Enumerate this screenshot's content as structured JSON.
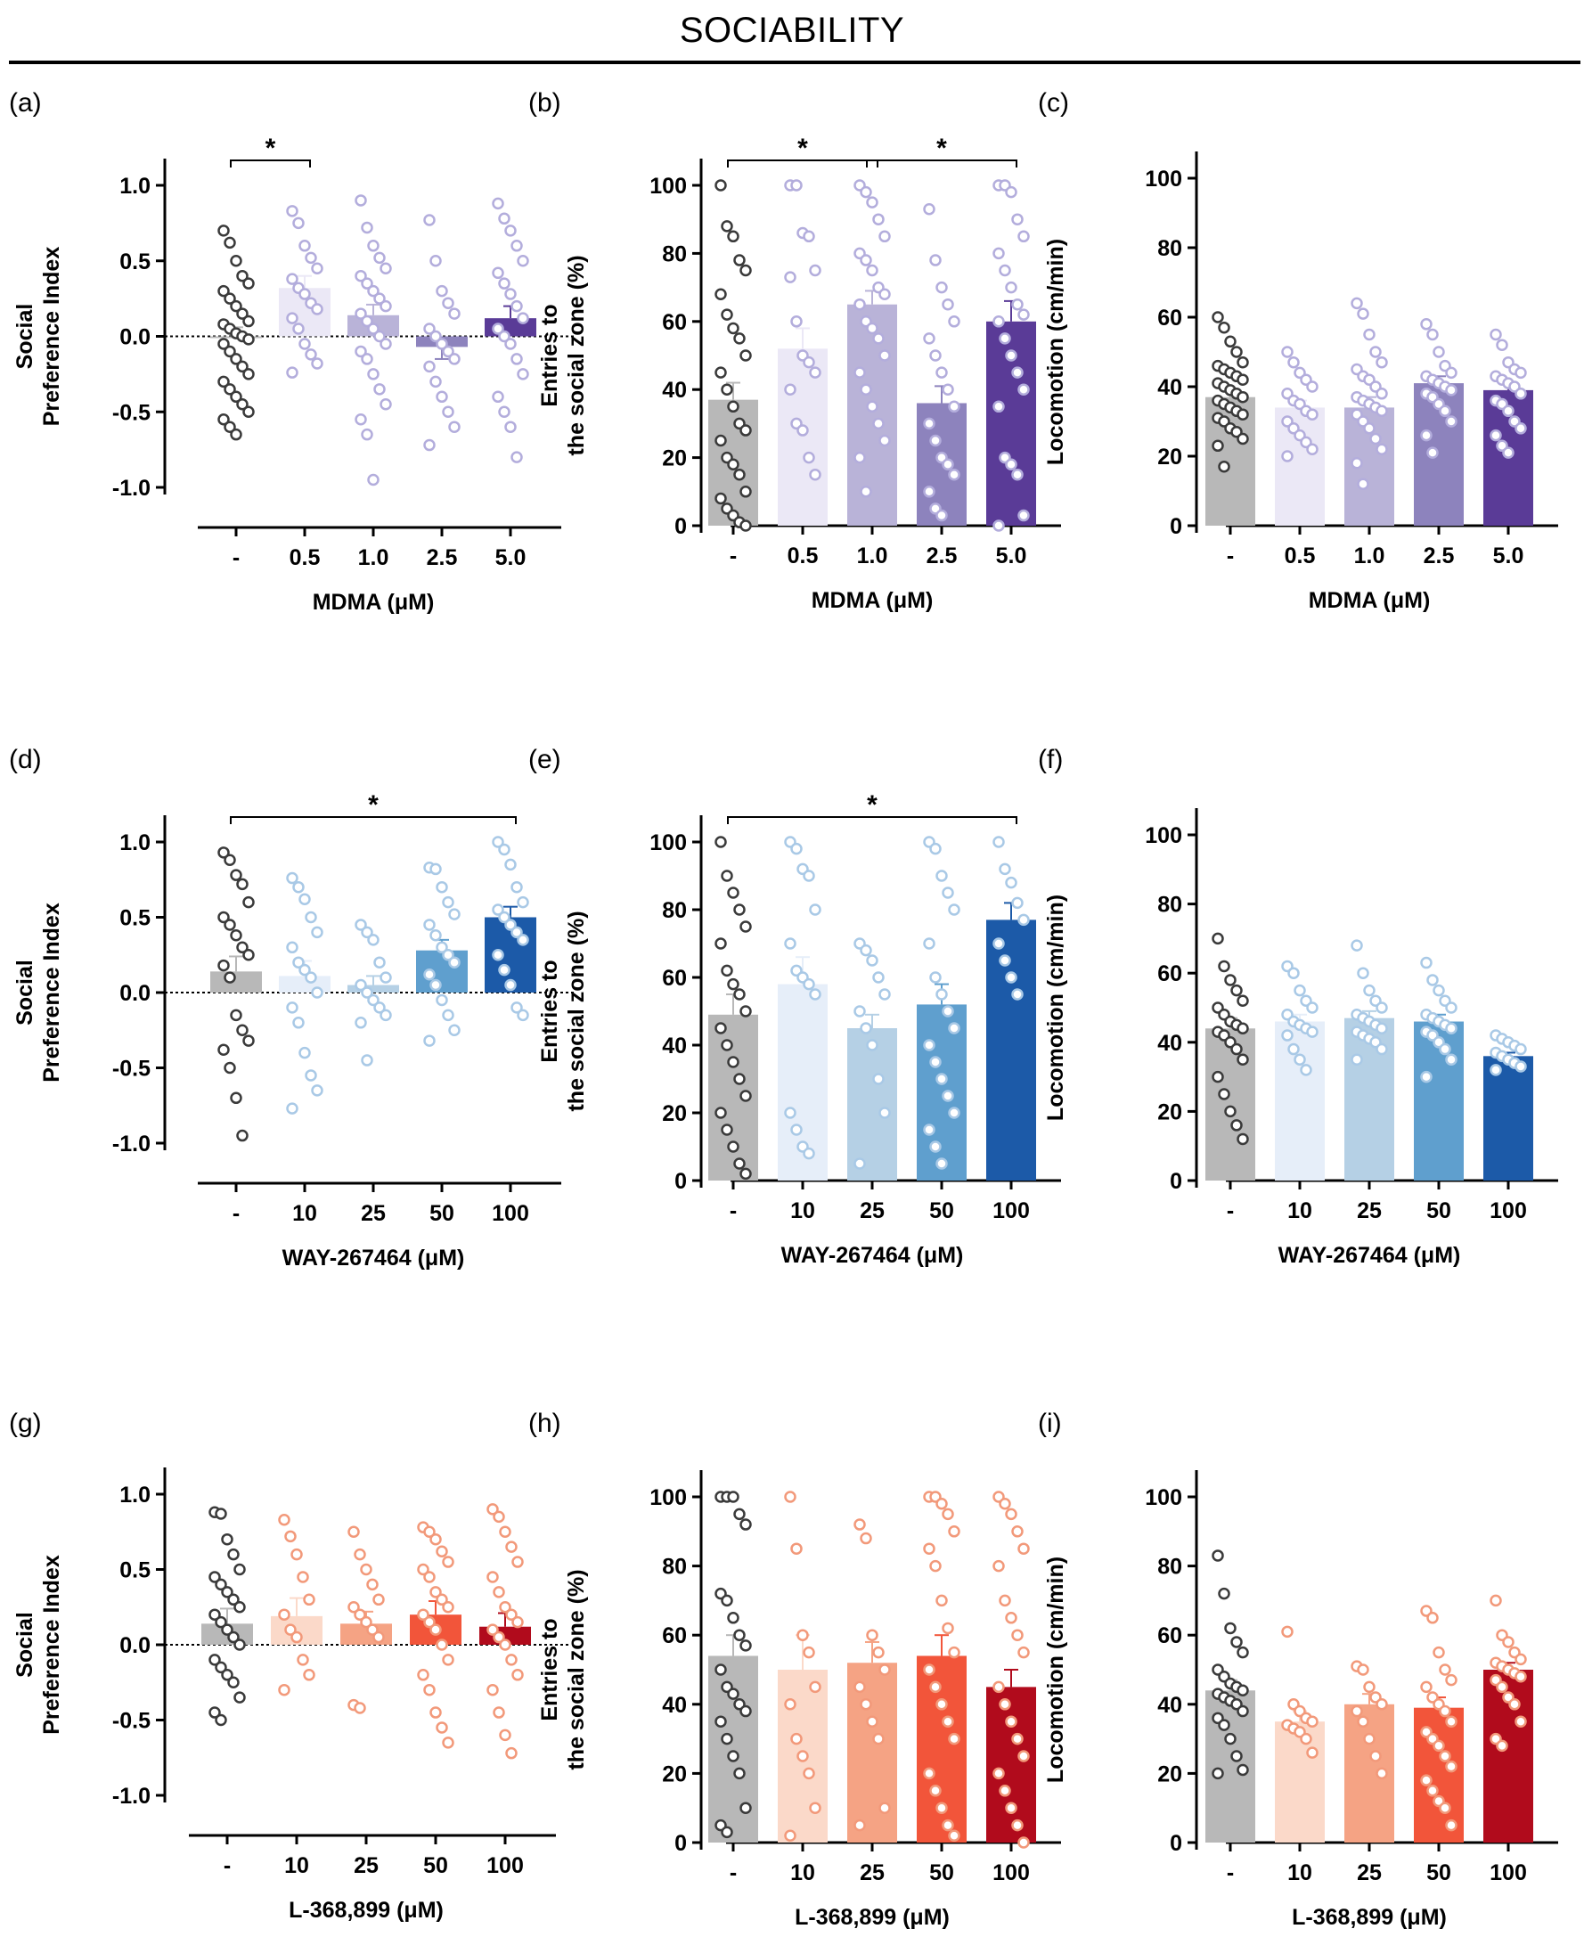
{
  "page": {
    "title": "SOCIABILITY"
  },
  "chart_data": [
    {
      "panel": "(a)",
      "type": "bar",
      "ylabel": [
        "Social",
        "Preference Index"
      ],
      "xlabel": "MDMA (μM)",
      "categories": [
        "-",
        "0.5",
        "1.0",
        "2.5",
        "5.0"
      ],
      "ylim": [
        -1.0,
        1.0
      ],
      "yticks": [
        "-1.0",
        "-0.5",
        "0.0",
        "0.5",
        "1.0"
      ],
      "zero_line": true,
      "colors": [
        "#b8b8b8",
        "#ebe8f6",
        "#b9b3d8",
        "#8d83bd",
        "#5a3b97"
      ],
      "values": [
        0.0,
        0.32,
        0.14,
        -0.07,
        0.12
      ],
      "sem": [
        0.06,
        0.08,
        0.07,
        0.08,
        0.08
      ],
      "points": [
        [
          0.7,
          0.62,
          0.5,
          0.4,
          0.35,
          0.3,
          0.25,
          0.2,
          0.15,
          0.1,
          0.08,
          0.05,
          0.02,
          0.0,
          -0.02,
          -0.05,
          -0.1,
          -0.15,
          -0.2,
          -0.25,
          -0.3,
          -0.35,
          -0.4,
          -0.45,
          -0.5,
          -0.55,
          -0.6,
          -0.65
        ],
        [
          0.83,
          0.75,
          0.6,
          0.52,
          0.45,
          0.38,
          0.32,
          0.28,
          0.22,
          0.18,
          0.12,
          0.05,
          -0.05,
          -0.12,
          -0.18,
          -0.24
        ],
        [
          0.9,
          0.72,
          0.6,
          0.52,
          0.45,
          0.4,
          0.35,
          0.3,
          0.25,
          0.2,
          0.15,
          0.1,
          0.05,
          0.0,
          -0.05,
          -0.1,
          -0.15,
          -0.25,
          -0.35,
          -0.45,
          -0.55,
          -0.65,
          -0.95
        ],
        [
          0.77,
          0.5,
          0.3,
          0.22,
          0.15,
          0.05,
          0.0,
          -0.05,
          -0.1,
          -0.15,
          -0.2,
          -0.3,
          -0.4,
          -0.5,
          -0.6,
          -0.72
        ],
        [
          0.88,
          0.78,
          0.7,
          0.6,
          0.5,
          0.42,
          0.35,
          0.28,
          0.2,
          0.12,
          0.05,
          0.0,
          -0.05,
          -0.15,
          -0.25,
          -0.4,
          -0.5,
          -0.6,
          -0.8
        ]
      ],
      "sig": [
        {
          "from": 0,
          "to": 1,
          "label": "*"
        }
      ]
    },
    {
      "panel": "(b)",
      "type": "bar",
      "ylabel": [
        "Entries to",
        "the social zone (%)"
      ],
      "xlabel": "MDMA (μM)",
      "categories": [
        "-",
        "0.5",
        "1.0",
        "2.5",
        "5.0"
      ],
      "ylim": [
        0,
        100
      ],
      "yticks": [
        "0",
        "20",
        "40",
        "60",
        "80",
        "100"
      ],
      "zero_line": false,
      "colors": [
        "#b8b8b8",
        "#ebe8f6",
        "#b9b3d8",
        "#8d83bd",
        "#5a3b97"
      ],
      "values": [
        37,
        52,
        65,
        36,
        60
      ],
      "sem": [
        5,
        6,
        4,
        5,
        6
      ],
      "points": [
        [
          100,
          88,
          85,
          78,
          75,
          68,
          62,
          58,
          55,
          50,
          45,
          40,
          35,
          30,
          28,
          25,
          20,
          18,
          15,
          10,
          8,
          5,
          3,
          1,
          0
        ],
        [
          100,
          100,
          86,
          85,
          75,
          73,
          60,
          50,
          48,
          45,
          40,
          30,
          28,
          20,
          15
        ],
        [
          100,
          98,
          95,
          90,
          85,
          80,
          78,
          75,
          70,
          68,
          65,
          60,
          58,
          55,
          50,
          45,
          40,
          35,
          30,
          25,
          20,
          10
        ],
        [
          93,
          78,
          70,
          65,
          60,
          55,
          50,
          45,
          40,
          35,
          30,
          25,
          20,
          18,
          15,
          10,
          5,
          3
        ],
        [
          100,
          100,
          98,
          90,
          85,
          80,
          75,
          70,
          65,
          62,
          60,
          55,
          50,
          45,
          40,
          35,
          20,
          18,
          15,
          3,
          0
        ]
      ],
      "sig": [
        {
          "from": 0,
          "to": 2,
          "label": "*"
        },
        {
          "from": 2,
          "to": 4,
          "label": "*"
        }
      ]
    },
    {
      "panel": "(c)",
      "type": "bar",
      "ylabel": [
        "Locomotion (cm/min)"
      ],
      "xlabel": "MDMA (μM)",
      "categories": [
        "-",
        "0.5",
        "1.0",
        "2.5",
        "5.0"
      ],
      "ylim": [
        0,
        100
      ],
      "yticks": [
        "0",
        "20",
        "40",
        "60",
        "80",
        "100"
      ],
      "zero_line": false,
      "colors": [
        "#b8b8b8",
        "#ebe8f6",
        "#b9b3d8",
        "#8d83bd",
        "#5a3b97"
      ],
      "values": [
        37,
        34,
        34,
        41,
        39
      ],
      "sem": [
        2,
        2,
        3,
        2,
        2
      ],
      "points": [
        [
          60,
          57,
          53,
          50,
          47,
          46,
          45,
          44,
          43,
          42,
          41,
          40,
          39,
          38,
          37,
          36,
          35,
          34,
          33,
          32,
          31,
          30,
          28,
          27,
          25,
          23,
          17
        ],
        [
          50,
          47,
          44,
          42,
          40,
          38,
          36,
          35,
          33,
          32,
          30,
          28,
          26,
          24,
          22,
          20
        ],
        [
          64,
          61,
          55,
          50,
          47,
          45,
          43,
          42,
          40,
          38,
          37,
          36,
          35,
          34,
          33,
          32,
          30,
          28,
          25,
          22,
          18,
          12
        ],
        [
          58,
          55,
          50,
          46,
          44,
          43,
          42,
          41,
          40,
          39,
          38,
          37,
          35,
          33,
          30,
          26,
          21
        ],
        [
          55,
          52,
          47,
          45,
          44,
          43,
          42,
          41,
          40,
          38,
          36,
          35,
          33,
          30,
          28,
          26,
          23,
          21
        ]
      ],
      "sig": []
    },
    {
      "panel": "(d)",
      "type": "bar",
      "ylabel": [
        "Social",
        "Preference Index"
      ],
      "xlabel": "WAY-267464 (μM)",
      "categories": [
        "-",
        "10",
        "25",
        "50",
        "100"
      ],
      "ylim": [
        -1.0,
        1.0
      ],
      "yticks": [
        "-1.0",
        "-0.5",
        "0.0",
        "0.5",
        "1.0"
      ],
      "zero_line": true,
      "colors": [
        "#b8b8b8",
        "#e6eef9",
        "#b5d0e5",
        "#5f9fce",
        "#1c5aa8"
      ],
      "values": [
        0.14,
        0.11,
        0.05,
        0.28,
        0.5
      ],
      "sem": [
        0.1,
        0.1,
        0.06,
        0.07,
        0.07
      ],
      "points": [
        [
          0.93,
          0.88,
          0.78,
          0.72,
          0.6,
          0.5,
          0.45,
          0.38,
          0.3,
          0.25,
          0.18,
          0.1,
          -0.15,
          -0.25,
          -0.32,
          -0.38,
          -0.5,
          -0.7,
          -0.95
        ],
        [
          0.76,
          0.7,
          0.62,
          0.5,
          0.4,
          0.3,
          0.2,
          0.15,
          0.1,
          0.0,
          -0.1,
          -0.2,
          -0.4,
          -0.55,
          -0.65,
          -0.77
        ],
        [
          0.45,
          0.4,
          0.35,
          0.2,
          0.1,
          0.05,
          0.0,
          -0.05,
          -0.1,
          -0.15,
          -0.2,
          -0.45
        ],
        [
          0.83,
          0.82,
          0.7,
          0.6,
          0.52,
          0.45,
          0.38,
          0.3,
          0.25,
          0.2,
          0.12,
          0.05,
          -0.05,
          -0.15,
          -0.25,
          -0.32
        ],
        [
          1.0,
          0.95,
          0.85,
          0.7,
          0.6,
          0.55,
          0.5,
          0.45,
          0.4,
          0.35,
          0.25,
          0.15,
          0.05,
          -0.1,
          -0.15
        ]
      ],
      "sig": [
        {
          "from": 0,
          "to": 4,
          "label": "*"
        }
      ]
    },
    {
      "panel": "(e)",
      "type": "bar",
      "ylabel": [
        "Entries to",
        "the social zone (%)"
      ],
      "xlabel": "WAY-267464 (μM)",
      "categories": [
        "-",
        "10",
        "25",
        "50",
        "100"
      ],
      "ylim": [
        0,
        100
      ],
      "yticks": [
        "0",
        "20",
        "40",
        "60",
        "80",
        "100"
      ],
      "zero_line": false,
      "colors": [
        "#b8b8b8",
        "#e6eef9",
        "#b5d0e5",
        "#5f9fce",
        "#1c5aa8"
      ],
      "values": [
        49,
        58,
        45,
        52,
        77
      ],
      "sem": [
        6,
        8,
        4,
        6,
        5
      ],
      "points": [
        [
          100,
          90,
          85,
          80,
          75,
          70,
          62,
          58,
          55,
          50,
          45,
          40,
          35,
          30,
          25,
          20,
          15,
          10,
          5,
          2
        ],
        [
          100,
          98,
          92,
          90,
          80,
          70,
          62,
          60,
          58,
          55,
          20,
          15,
          10,
          8
        ],
        [
          70,
          68,
          65,
          60,
          55,
          50,
          45,
          40,
          30,
          20,
          5
        ],
        [
          100,
          98,
          90,
          85,
          80,
          70,
          60,
          55,
          50,
          45,
          40,
          35,
          30,
          25,
          20,
          15,
          10,
          5
        ],
        [
          100,
          92,
          88,
          82,
          77,
          70,
          65,
          60,
          55
        ]
      ],
      "sig": [
        {
          "from": 0,
          "to": 4,
          "label": "*"
        }
      ]
    },
    {
      "panel": "(f)",
      "type": "bar",
      "ylabel": [
        "Locomotion (cm/min)"
      ],
      "xlabel": "WAY-267464 (μM)",
      "categories": [
        "-",
        "10",
        "25",
        "50",
        "100"
      ],
      "ylim": [
        0,
        100
      ],
      "yticks": [
        "0",
        "20",
        "40",
        "60",
        "80",
        "100"
      ],
      "zero_line": false,
      "colors": [
        "#b8b8b8",
        "#e6eef9",
        "#b5d0e5",
        "#5f9fce",
        "#1c5aa8"
      ],
      "values": [
        44,
        46,
        47,
        46,
        36
      ],
      "sem": [
        3,
        2,
        2,
        2,
        1
      ],
      "points": [
        [
          70,
          62,
          58,
          55,
          52,
          50,
          48,
          46,
          45,
          44,
          43,
          42,
          40,
          38,
          35,
          30,
          25,
          20,
          16,
          12
        ],
        [
          62,
          60,
          55,
          52,
          50,
          48,
          46,
          45,
          44,
          43,
          42,
          38,
          35,
          32
        ],
        [
          68,
          60,
          55,
          52,
          50,
          48,
          47,
          46,
          45,
          44,
          43,
          42,
          41,
          40,
          38,
          35
        ],
        [
          63,
          58,
          55,
          52,
          50,
          48,
          47,
          46,
          45,
          44,
          43,
          42,
          40,
          38,
          35,
          30
        ],
        [
          42,
          41,
          40,
          39,
          38,
          37,
          36,
          35,
          34,
          33,
          32
        ]
      ],
      "sig": []
    },
    {
      "panel": "(g)",
      "type": "bar",
      "ylabel": [
        "Social",
        "Preference Index"
      ],
      "xlabel": "L-368,899 (μM)",
      "categories": [
        "-",
        "10",
        "25",
        "50",
        "100"
      ],
      "ylim": [
        -1.0,
        1.0
      ],
      "yticks": [
        "-1.0",
        "-0.5",
        "0.0",
        "0.5",
        "1.0"
      ],
      "zero_line": true,
      "colors": [
        "#b8b8b8",
        "#fbd9c9",
        "#f5a384",
        "#f2553a",
        "#b10b1c"
      ],
      "values": [
        0.14,
        0.19,
        0.14,
        0.2,
        0.12
      ],
      "sem": [
        0.1,
        0.12,
        0.08,
        0.09,
        0.09
      ],
      "points": [
        [
          0.88,
          0.87,
          0.7,
          0.6,
          0.5,
          0.45,
          0.4,
          0.35,
          0.3,
          0.25,
          0.2,
          0.15,
          0.1,
          0.05,
          0.0,
          -0.1,
          -0.15,
          -0.2,
          -0.25,
          -0.35,
          -0.45,
          -0.5
        ],
        [
          0.83,
          0.72,
          0.6,
          0.45,
          0.3,
          0.2,
          0.1,
          0.05,
          -0.1,
          -0.2,
          -0.3
        ],
        [
          0.75,
          0.6,
          0.5,
          0.4,
          0.3,
          0.25,
          0.2,
          0.15,
          0.1,
          0.05,
          -0.4,
          -0.42
        ],
        [
          0.78,
          0.75,
          0.7,
          0.62,
          0.55,
          0.5,
          0.45,
          0.35,
          0.3,
          0.25,
          0.2,
          0.15,
          0.1,
          0.0,
          -0.1,
          -0.2,
          -0.3,
          -0.45,
          -0.55,
          -0.65
        ],
        [
          0.9,
          0.85,
          0.75,
          0.65,
          0.55,
          0.45,
          0.35,
          0.25,
          0.2,
          0.15,
          0.1,
          0.05,
          0.0,
          -0.1,
          -0.2,
          -0.3,
          -0.45,
          -0.6,
          -0.72
        ]
      ],
      "sig": []
    },
    {
      "panel": "(h)",
      "type": "bar",
      "ylabel": [
        "Entries to",
        "the social zone (%)"
      ],
      "xlabel": "L-368,899 (μM)",
      "categories": [
        "-",
        "10",
        "25",
        "50",
        "100"
      ],
      "ylim": [
        0,
        100
      ],
      "yticks": [
        "0",
        "20",
        "40",
        "60",
        "80",
        "100"
      ],
      "zero_line": false,
      "colors": [
        "#b8b8b8",
        "#fbd9c9",
        "#f5a384",
        "#f2553a",
        "#b10b1c"
      ],
      "values": [
        54,
        50,
        52,
        54,
        45
      ],
      "sem": [
        6,
        10,
        6,
        6,
        5
      ],
      "points": [
        [
          100,
          100,
          100,
          95,
          92,
          72,
          70,
          65,
          60,
          57,
          50,
          45,
          43,
          40,
          38,
          35,
          30,
          25,
          20,
          10,
          5,
          3
        ],
        [
          100,
          85,
          60,
          55,
          45,
          40,
          30,
          25,
          20,
          10,
          2
        ],
        [
          92,
          88,
          60,
          55,
          50,
          45,
          40,
          35,
          30,
          10,
          5
        ],
        [
          100,
          100,
          98,
          95,
          90,
          85,
          80,
          70,
          62,
          55,
          50,
          45,
          40,
          35,
          30,
          20,
          15,
          10,
          5,
          2
        ],
        [
          100,
          98,
          95,
          90,
          85,
          80,
          70,
          65,
          60,
          55,
          45,
          40,
          35,
          30,
          25,
          20,
          15,
          10,
          5,
          0
        ]
      ],
      "sig": []
    },
    {
      "panel": "(i)",
      "type": "bar",
      "ylabel": [
        "Locomotion (cm/min)"
      ],
      "xlabel": "L-368,899 (μM)",
      "categories": [
        "-",
        "10",
        "25",
        "50",
        "100"
      ],
      "ylim": [
        0,
        100
      ],
      "yticks": [
        "0",
        "20",
        "40",
        "60",
        "80",
        "100"
      ],
      "zero_line": false,
      "colors": [
        "#b8b8b8",
        "#fbd9c9",
        "#f5a384",
        "#f2553a",
        "#b10b1c"
      ],
      "values": [
        44,
        35,
        40,
        39,
        50
      ],
      "sem": [
        3,
        3,
        3,
        3,
        2
      ],
      "points": [
        [
          83,
          72,
          62,
          58,
          55,
          50,
          48,
          46,
          45,
          44,
          43,
          42,
          41,
          40,
          38,
          36,
          34,
          30,
          25,
          21,
          20
        ],
        [
          61,
          40,
          38,
          36,
          35,
          34,
          33,
          32,
          30,
          26
        ],
        [
          51,
          50,
          45,
          42,
          40,
          38,
          35,
          30,
          25,
          20
        ],
        [
          67,
          65,
          55,
          50,
          47,
          45,
          42,
          40,
          38,
          35,
          32,
          30,
          28,
          25,
          22,
          18,
          15,
          12,
          10,
          5
        ],
        [
          70,
          60,
          58,
          55,
          53,
          52,
          51,
          50,
          49,
          48,
          47,
          45,
          42,
          40,
          35,
          30,
          28
        ]
      ],
      "sig": []
    }
  ]
}
